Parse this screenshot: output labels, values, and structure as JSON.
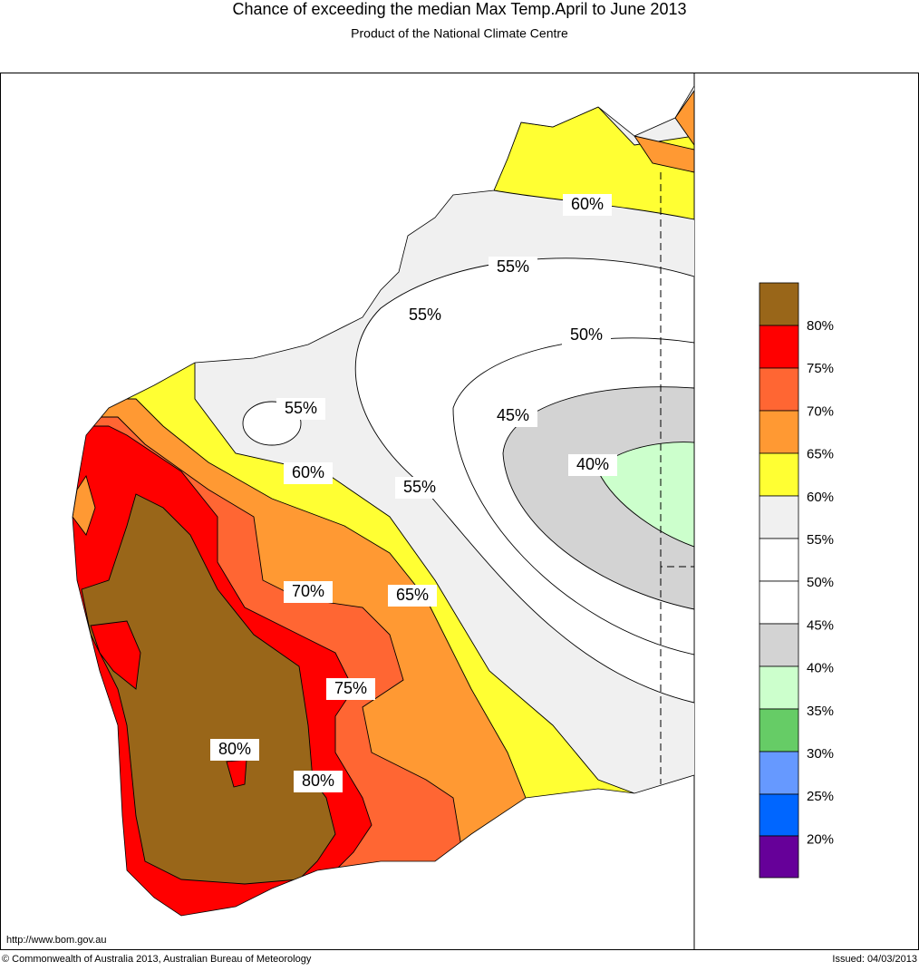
{
  "header": {
    "title": "Chance of exceeding the median Max Temp.April to June 2013",
    "subtitle": "Product of the National Climate Centre"
  },
  "map": {
    "contour_labels": [
      "60%",
      "55%",
      "55%",
      "50%",
      "55%",
      "45%",
      "40%",
      "60%",
      "55%",
      "70%",
      "65%",
      "75%",
      "80%",
      "80%"
    ]
  },
  "legend": {
    "labels": [
      "80%",
      "75%",
      "70%",
      "65%",
      "60%",
      "55%",
      "50%",
      "45%",
      "40%",
      "35%",
      "30%",
      "25%",
      "20%"
    ]
  },
  "footer": {
    "url": "http://www.bom.gov.au",
    "copyright": "© Commonwealth of Australia 2013, Australian Bureau of Meteorology",
    "issued": "Issued: 04/03/2013"
  }
}
